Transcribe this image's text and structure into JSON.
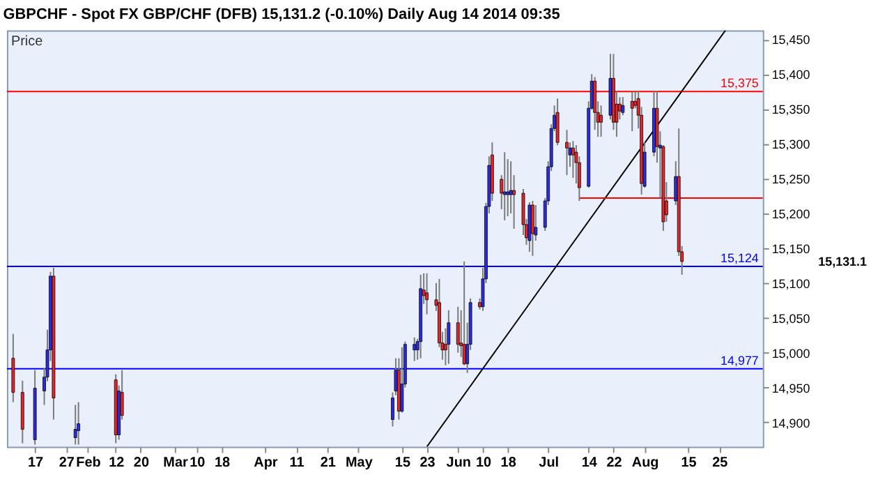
{
  "chart_data": {
    "type": "candlestick",
    "title": "GBPCHF - Spot FX GBP/CHF (DFB)    15,131.2 (-0.10%)    Daily  Aug 14 2014 09:35",
    "x": [
      "2014-01-10",
      "2014-01-13",
      "2014-01-17",
      "2014-01-20",
      "2014-01-21",
      "2014-01-22",
      "2014-01-23",
      "2014-01-30",
      "2014-01-31",
      "2014-02-12",
      "2014-02-13",
      "2014-02-14",
      "2014-05-12",
      "2014-05-13",
      "2014-05-14",
      "2014-05-15",
      "2014-05-16",
      "2014-05-19",
      "2014-05-20",
      "2014-05-21",
      "2014-05-22",
      "2014-05-23",
      "2014-05-26",
      "2014-05-27",
      "2014-05-28",
      "2014-05-29",
      "2014-05-30",
      "2014-06-02",
      "2014-06-03",
      "2014-06-04",
      "2014-06-05",
      "2014-06-06",
      "2014-06-09",
      "2014-06-10",
      "2014-06-11",
      "2014-06-12",
      "2014-06-13",
      "2014-06-16",
      "2014-06-17",
      "2014-06-18",
      "2014-06-19",
      "2014-06-20",
      "2014-06-23",
      "2014-06-24",
      "2014-06-25",
      "2014-06-26",
      "2014-06-27",
      "2014-06-30",
      "2014-07-01",
      "2014-07-02",
      "2014-07-03",
      "2014-07-04",
      "2014-07-07",
      "2014-07-08",
      "2014-07-09",
      "2014-07-10",
      "2014-07-11",
      "2014-07-14",
      "2014-07-15",
      "2014-07-16",
      "2014-07-17",
      "2014-07-18",
      "2014-07-21",
      "2014-07-22",
      "2014-07-23",
      "2014-07-24",
      "2014-07-25",
      "2014-07-28",
      "2014-07-29",
      "2014-07-30",
      "2014-07-31",
      "2014-08-01",
      "2014-08-04",
      "2014-08-05",
      "2014-08-06",
      "2014-08-07",
      "2014-08-08",
      "2014-08-11",
      "2014-08-12",
      "2014-08-13"
    ],
    "ohlc": [
      [
        14992,
        15027,
        14929,
        14943
      ],
      [
        14943,
        14960,
        14870,
        14890
      ],
      [
        14875,
        14975,
        14868,
        14949
      ],
      [
        14945,
        14978,
        14925,
        14965
      ],
      [
        14965,
        15033,
        14959,
        15004
      ],
      [
        15004,
        15116,
        14988,
        15110
      ],
      [
        15110,
        15122,
        14904,
        14935
      ],
      [
        14878,
        14925,
        14868,
        14890
      ],
      [
        14888,
        14929,
        14868,
        14898
      ],
      [
        14961,
        14969,
        14870,
        14882
      ],
      [
        14882,
        14953,
        14875,
        14945
      ],
      [
        14943,
        14975,
        14904,
        14910
      ],
      [
        14904,
        14943,
        14894,
        14935
      ],
      [
        14945,
        14992,
        14939,
        14975
      ],
      [
        14975,
        14992,
        14904,
        14916
      ],
      [
        14916,
        15008,
        14914,
        14955
      ],
      [
        14955,
        15016,
        14950,
        15012
      ],
      [
        15004,
        15022,
        14988,
        15012
      ],
      [
        15004,
        15020,
        14990,
        15016
      ],
      [
        15016,
        15112,
        14992,
        15092
      ],
      [
        15090,
        15114,
        15070,
        15082
      ],
      [
        15086,
        15114,
        15055,
        15076
      ],
      [
        15076,
        15100,
        15060,
        15068
      ],
      [
        15072,
        15106,
        15008,
        15014
      ],
      [
        15014,
        15030,
        14990,
        15004
      ],
      [
        15012,
        15035,
        14982,
        15004
      ],
      [
        15012,
        15061,
        14984,
        15043
      ],
      [
        15043,
        15066,
        15000,
        15012
      ],
      [
        15014,
        15061,
        14994,
        15010
      ],
      [
        15012,
        15131,
        14982,
        14984
      ],
      [
        14984,
        15043,
        14971,
        15012
      ],
      [
        15012,
        15078,
        15004,
        15072
      ],
      [
        15072,
        15078,
        15062,
        15066
      ],
      [
        15066,
        15122,
        15060,
        15106
      ],
      [
        15106,
        15215,
        15100,
        15210
      ],
      [
        15210,
        15282,
        15200,
        15269
      ],
      [
        15284,
        15302,
        15218,
        15229
      ],
      [
        15249,
        15255,
        15206,
        15229
      ],
      [
        15227,
        15288,
        15190,
        15231
      ],
      [
        15227,
        15278,
        15196,
        15231
      ],
      [
        15227,
        15275,
        15200,
        15233
      ],
      [
        15233,
        15255,
        15178,
        15227
      ],
      [
        15229,
        15235,
        15169,
        15184
      ],
      [
        15184,
        15192,
        15155,
        15165
      ],
      [
        15161,
        15216,
        15145,
        15212
      ],
      [
        15212,
        15218,
        15139,
        15171
      ],
      [
        15169,
        15212,
        15161,
        15180
      ],
      [
        15180,
        15222,
        15175,
        15218
      ],
      [
        15218,
        15275,
        15212,
        15267
      ],
      [
        15267,
        15328,
        15261,
        15322
      ],
      [
        15322,
        15355,
        15318,
        15341
      ],
      [
        15345,
        15365,
        15298,
        15302
      ],
      [
        15302,
        15320,
        15255,
        15294
      ],
      [
        15284,
        15302,
        15267,
        15294
      ],
      [
        15294,
        15304,
        15251,
        15284
      ],
      [
        15288,
        15298,
        15243,
        15273
      ],
      [
        15273,
        15282,
        15218,
        15237
      ],
      [
        15239,
        15361,
        15237,
        15351
      ],
      [
        15351,
        15400,
        15349,
        15390
      ],
      [
        15390,
        15396,
        15320,
        15345
      ],
      [
        15345,
        15361,
        15310,
        15331
      ],
      [
        15341,
        15355,
        15310,
        15331
      ],
      [
        15341,
        15429,
        15335,
        15394
      ],
      [
        15394,
        15429,
        15320,
        15331
      ],
      [
        15357,
        15375,
        15310,
        15331
      ],
      [
        15357,
        15367,
        15335,
        15347
      ],
      [
        15345,
        15367,
        15341,
        15355
      ],
      [
        15361,
        15375,
        15318,
        15351
      ],
      [
        15361,
        15375,
        15351,
        15355
      ],
      [
        15365,
        15376,
        15322,
        15341
      ],
      [
        15341,
        15353,
        15227,
        15243
      ],
      [
        15239,
        15302,
        15237,
        15288
      ],
      [
        15288,
        15376,
        15282,
        15351
      ],
      [
        15351,
        15376,
        15273,
        15296
      ],
      [
        15294,
        15318,
        15222,
        15298
      ],
      [
        15296,
        15298,
        15175,
        15188
      ],
      [
        15218,
        15245,
        15188,
        15198
      ],
      [
        15218,
        15275,
        15212,
        15253
      ],
      [
        15253,
        15322,
        15139,
        15145
      ],
      [
        15145,
        15153,
        15112,
        15131
      ]
    ],
    "colors": [
      "#e8242b",
      "#e8242b",
      "#2b2be0",
      "#2b2be0",
      "#2b2be0",
      "#2b2be0",
      "#e8242b",
      "#2b2be0",
      "#2b2be0",
      "#e8242b",
      "#2b2be0",
      "#e8242b",
      "#2b2be0",
      "#2b2be0",
      "#e8242b",
      "#2b2be0",
      "#2b2be0",
      "#2b2be0",
      "#2b2be0",
      "#2b2be0",
      "#e8242b",
      "#e8242b",
      "#e8242b",
      "#e8242b",
      "#e8242b",
      "#e8242b",
      "#2b2be0",
      "#e8242b",
      "#e8242b",
      "#e8242b",
      "#2b2be0",
      "#2b2be0",
      "#e8242b",
      "#2b2be0",
      "#2b2be0",
      "#2b2be0",
      "#e8242b",
      "#e8242b",
      "#2b2be0",
      "#2b2be0",
      "#2b2be0",
      "#e8242b",
      "#e8242b",
      "#e8242b",
      "#2b2be0",
      "#e8242b",
      "#2b2be0",
      "#2b2be0",
      "#2b2be0",
      "#2b2be0",
      "#2b2be0",
      "#e8242b",
      "#e8242b",
      "#2b2be0",
      "#e8242b",
      "#e8242b",
      "#e8242b",
      "#2b2be0",
      "#2b2be0",
      "#e8242b",
      "#e8242b",
      "#e8242b",
      "#2b2be0",
      "#e8242b",
      "#e8242b",
      "#e8242b",
      "#2b2be0",
      "#e8242b",
      "#e8242b",
      "#e8242b",
      "#e8242b",
      "#2b2be0",
      "#2b2be0",
      "#e8242b",
      "#2b2be0",
      "#e8242b",
      "#e8242b",
      "#2b2be0",
      "#e8242b",
      "#e8242b"
    ],
    "series": [
      {
        "type": "line",
        "color": "#000000",
        "x": [
          "2014-05-23",
          "2014-08-27"
        ],
        "values": [
          14865,
          15463
        ]
      },
      {
        "type": "line",
        "color": "#ff0000",
        "x": [
          "2014-07-11",
          "2014-09-08"
        ],
        "values": [
          15222,
          15222
        ]
      }
    ],
    "ref_lines": [
      {
        "axis": "y",
        "value": 15375,
        "label": "15,375",
        "color": "#ff0000"
      },
      {
        "axis": "y",
        "value": 15124,
        "label": "15,124",
        "color": "#0000ff"
      },
      {
        "axis": "y",
        "value": 14977,
        "label": "14,977",
        "color": "#0000ff"
      }
    ],
    "annotations": [
      "Price",
      "15,131.1"
    ],
    "xlim": [
      "2014-01-08",
      "2014-09-08"
    ],
    "xticks": [
      {
        "value": "2014-01-17",
        "label": "17"
      },
      {
        "value": "2014-01-27",
        "label": "27"
      },
      {
        "value": "2014-02-03",
        "label": "Feb"
      },
      {
        "value": "2014-02-12",
        "label": "12"
      },
      {
        "value": "2014-02-20",
        "label": "20"
      },
      {
        "value": "2014-03-03",
        "label": "Mar"
      },
      {
        "value": "2014-03-10",
        "label": "10"
      },
      {
        "value": "2014-03-18",
        "label": "18"
      },
      {
        "value": "2014-04-01",
        "label": "Apr"
      },
      {
        "value": "2014-04-11",
        "label": "11"
      },
      {
        "value": "2014-04-21",
        "label": "21"
      },
      {
        "value": "2014-05-01",
        "label": "May"
      },
      {
        "value": "2014-05-15",
        "label": "15"
      },
      {
        "value": "2014-05-23",
        "label": "23"
      },
      {
        "value": "2014-06-02",
        "label": "Jun"
      },
      {
        "value": "2014-06-10",
        "label": "10"
      },
      {
        "value": "2014-06-18",
        "label": "18"
      },
      {
        "value": "2014-07-01",
        "label": "Jul"
      },
      {
        "value": "2014-07-14",
        "label": "14"
      },
      {
        "value": "2014-07-22",
        "label": "22"
      },
      {
        "value": "2014-08-01",
        "label": "Aug"
      },
      {
        "value": "2014-08-15",
        "label": "15"
      },
      {
        "value": "2014-08-25",
        "label": "25"
      }
    ],
    "ylim": [
      14865,
      15463
    ],
    "yticks": [
      {
        "value": 14900,
        "label": "14,900"
      },
      {
        "value": 14950,
        "label": "14,950"
      },
      {
        "value": 15000,
        "label": "15,000"
      },
      {
        "value": 15050,
        "label": "15,050"
      },
      {
        "value": 15100,
        "label": "15,100"
      },
      {
        "value": 15150,
        "label": "15,150"
      },
      {
        "value": 15200,
        "label": "15,200"
      },
      {
        "value": 15250,
        "label": "15,250"
      },
      {
        "value": 15300,
        "label": "15,300"
      },
      {
        "value": 15350,
        "label": "15,350"
      },
      {
        "value": 15400,
        "label": "15,400"
      },
      {
        "value": 15450,
        "label": "15,450"
      }
    ]
  }
}
